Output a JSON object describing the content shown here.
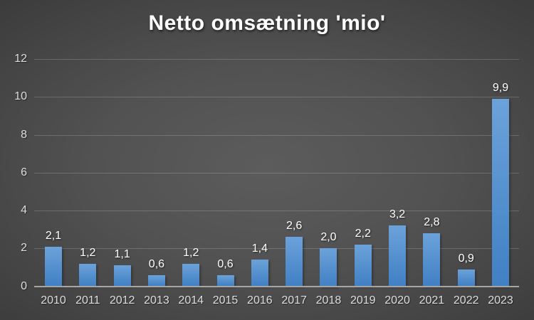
{
  "chart_data": {
    "type": "bar",
    "title": "Netto omsætning 'mio'",
    "categories": [
      "2010",
      "2011",
      "2012",
      "2013",
      "2014",
      "2015",
      "2016",
      "2017",
      "2018",
      "2019",
      "2020",
      "2021",
      "2022",
      "2023"
    ],
    "values": [
      2.1,
      1.2,
      1.1,
      0.6,
      1.2,
      0.6,
      1.4,
      2.6,
      2.0,
      2.2,
      3.2,
      2.8,
      0.9,
      9.9
    ],
    "value_labels": [
      "2,1",
      "1,2",
      "1,1",
      "0,6",
      "1,2",
      "0,6",
      "1,4",
      "2,6",
      "2,0",
      "2,2",
      "3,2",
      "2,8",
      "0,9",
      "9,9"
    ],
    "xlabel": "",
    "ylabel": "",
    "ylim": [
      0,
      12
    ],
    "yticks": [
      0,
      2,
      4,
      6,
      8,
      10,
      12
    ],
    "grid": "horizontal",
    "legend": "none",
    "colors": {
      "bar_gradient_top": "#6CA2DA",
      "bar_gradient_bottom": "#4080C4",
      "background_center": "#5C5C5C",
      "background_edge": "#242424",
      "gridline": "rgba(255,255,255,0.18)",
      "axis_line": "#A6A6A6",
      "title_text": "#FFFFFF",
      "value_label_text": "#FFFFFF",
      "tick_text": "#DEDEDE"
    }
  }
}
